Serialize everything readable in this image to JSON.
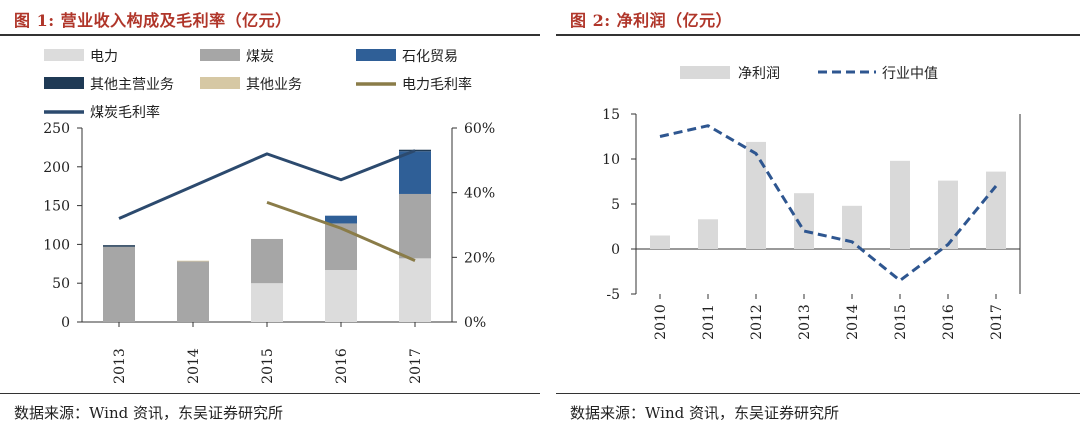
{
  "colors": {
    "title": "#b0362a",
    "power": "#dcdcdc",
    "coal": "#a6a6a6",
    "petro": "#2f5f97",
    "other_main": "#1f3a55",
    "other": "#d6c8a4",
    "power_margin": "#8a7c48",
    "coal_margin": "#2c4a6e",
    "net_profit": "#d9d9d9",
    "industry_median": "#2e5690"
  },
  "fig1": {
    "title": "图 1:  营业收入构成及毛利率（亿元）",
    "source": "数据来源：Wind 资讯，东吴证券研究所",
    "legend": [
      "电力",
      "煤炭",
      "石化贸易",
      "其他主营业务",
      "其他业务",
      "电力毛利率",
      "煤炭毛利率"
    ],
    "y_left_ticks": [
      "0",
      "50",
      "100",
      "150",
      "200",
      "250"
    ],
    "y_right_ticks": [
      "0%",
      "20%",
      "40%",
      "60%"
    ]
  },
  "fig2": {
    "title": "图 2:  净利润（亿元）",
    "source": "数据来源：Wind 资讯，东吴证券研究所",
    "legend": [
      "净利润",
      "行业中值"
    ],
    "y_ticks": [
      "-5",
      "0",
      "5",
      "10",
      "15"
    ]
  },
  "chart_data": [
    {
      "type": "bar",
      "stacked": true,
      "categories": [
        "2013",
        "2014",
        "2015",
        "2016",
        "2017"
      ],
      "series": [
        {
          "name": "电力",
          "values": [
            0,
            0,
            50,
            67,
            82
          ],
          "color_key": "power"
        },
        {
          "name": "煤炭",
          "values": [
            97,
            78,
            57,
            60,
            83
          ],
          "color_key": "coal"
        },
        {
          "name": "石化贸易",
          "values": [
            0,
            0,
            0,
            10,
            55
          ],
          "color_key": "petro"
        },
        {
          "name": "其他主营业务",
          "values": [
            2,
            0,
            0,
            0,
            2
          ],
          "color_key": "other_main"
        },
        {
          "name": "其他业务",
          "values": [
            0,
            1,
            0,
            0,
            0
          ],
          "color_key": "other"
        }
      ],
      "lines": [
        {
          "name": "电力毛利率",
          "values": [
            null,
            null,
            0.37,
            0.29,
            0.19
          ],
          "axis": "right",
          "color_key": "power_margin"
        },
        {
          "name": "煤炭毛利率",
          "values": [
            0.32,
            0.42,
            0.52,
            0.44,
            0.53
          ],
          "axis": "right",
          "color_key": "coal_margin"
        }
      ],
      "ylim": [
        0,
        250
      ],
      "ylim_right": [
        0,
        0.6
      ],
      "legend_placement": "top"
    },
    {
      "type": "bar",
      "categories": [
        "2010",
        "2011",
        "2012",
        "2013",
        "2014",
        "2015",
        "2016",
        "2017"
      ],
      "series": [
        {
          "name": "净利润",
          "values": [
            1.5,
            3.3,
            11.9,
            6.2,
            4.8,
            9.8,
            7.6,
            8.6
          ],
          "color_key": "net_profit"
        }
      ],
      "lines": [
        {
          "name": "行业中值",
          "values": [
            12.5,
            13.7,
            10.6,
            2.0,
            0.8,
            -3.5,
            0.5,
            7.0
          ],
          "dashed": true,
          "color_key": "industry_median"
        }
      ],
      "ylim": [
        -5,
        15
      ],
      "legend_placement": "top"
    }
  ]
}
